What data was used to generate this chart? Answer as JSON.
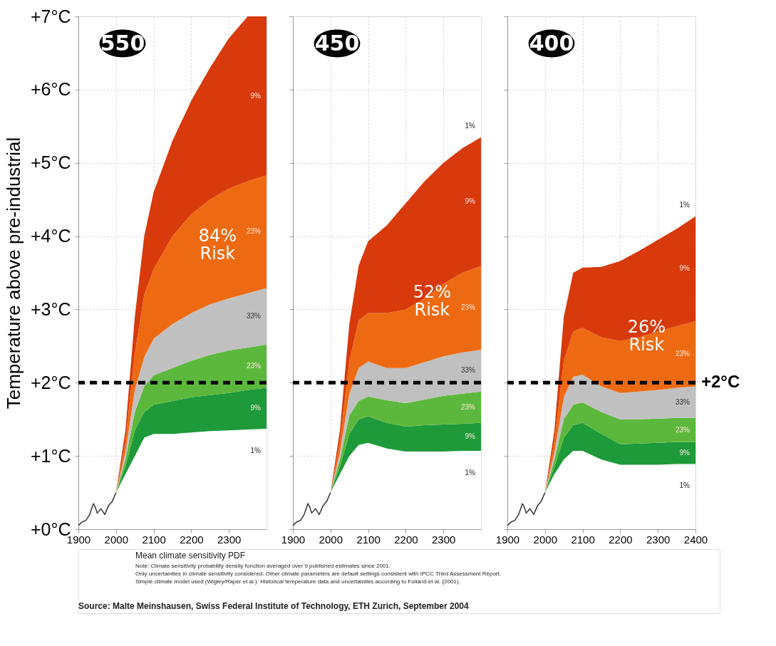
{
  "chart_data": [
    {
      "type": "area",
      "title": "550",
      "stacked": true,
      "ylabel": "Temperature above pre-industrial",
      "xlim": [
        1900,
        2400
      ],
      "xticks": [
        1900,
        2000,
        2100,
        2200,
        2300
      ],
      "ylim": [
        0,
        7
      ],
      "yticks": [
        {
          "value": 0,
          "label": "+0°C"
        },
        {
          "value": 1,
          "label": "+1°C"
        },
        {
          "value": 2,
          "label": "+2°C"
        },
        {
          "value": 3,
          "label": "+3°C"
        },
        {
          "value": 4,
          "label": "+4°C"
        },
        {
          "value": 5,
          "label": "+5°C"
        },
        {
          "value": 6,
          "label": "+6°C"
        },
        {
          "value": 7,
          "label": "+7°C"
        }
      ],
      "grid": true,
      "x": [
        2000,
        2025,
        2050,
        2075,
        2100,
        2150,
        2200,
        2250,
        2300,
        2350,
        2400
      ],
      "series": [
        {
          "name": "1%",
          "color": "#ffffff",
          "values": [
            0.5,
            0.75,
            1.0,
            1.25,
            1.3,
            1.3,
            1.32,
            1.34,
            1.35,
            1.36,
            1.37
          ]
        },
        {
          "name": "9%",
          "color": "#1e9a3a",
          "values": [
            0,
            0.1,
            0.35,
            0.35,
            0.4,
            0.45,
            0.48,
            0.49,
            0.51,
            0.54,
            0.56
          ]
        },
        {
          "name": "23%",
          "color": "#5cb83c",
          "values": [
            0,
            0.1,
            0.25,
            0.35,
            0.4,
            0.45,
            0.5,
            0.55,
            0.58,
            0.58,
            0.59
          ]
        },
        {
          "name": "33%",
          "color": "#c0c0c0",
          "values": [
            0,
            0.1,
            0.3,
            0.4,
            0.5,
            0.6,
            0.65,
            0.69,
            0.71,
            0.74,
            0.77
          ]
        },
        {
          "name": "23%",
          "color": "#ee6a12",
          "values": [
            0,
            0.15,
            0.5,
            0.85,
            0.95,
            1.2,
            1.35,
            1.43,
            1.5,
            1.53,
            1.54
          ]
        },
        {
          "name": "9%",
          "color": "#d83a0c",
          "values": [
            0,
            0.15,
            0.5,
            0.8,
            1.05,
            1.3,
            1.55,
            1.8,
            2.05,
            2.25,
            2.17
          ]
        },
        {
          "type": "line",
          "color": "#333333",
          "x": [
            1900,
            1910,
            1920,
            1930,
            1940,
            1945,
            1950,
            1960,
            1970,
            1980,
            1990,
            2000
          ],
          "values": [
            0.05,
            0.1,
            0.12,
            0.2,
            0.35,
            0.3,
            0.22,
            0.28,
            0.2,
            0.32,
            0.38,
            0.5
          ]
        }
      ],
      "ref_lines": [
        {
          "axis": "y",
          "value": 2,
          "color": "#000000",
          "line_style": "dashed"
        }
      ],
      "annotations": [
        "84%\nRisk"
      ]
    },
    {
      "type": "area",
      "title": "450",
      "stacked": true,
      "tick_labels": "x",
      "xlim": [
        1900,
        2400
      ],
      "xticks": [
        1900,
        2000,
        2100,
        2200,
        2300
      ],
      "ylim": [
        0,
        7
      ],
      "yticks": [
        0,
        1,
        2,
        3,
        4,
        5,
        6,
        7
      ],
      "grid": true,
      "x": [
        2000,
        2025,
        2050,
        2075,
        2100,
        2150,
        2200,
        2250,
        2300,
        2350,
        2400
      ],
      "series": [
        {
          "name": "1%",
          "color": "#ffffff",
          "values": [
            0.5,
            0.75,
            1.0,
            1.15,
            1.18,
            1.1,
            1.06,
            1.06,
            1.06,
            1.07,
            1.07
          ]
        },
        {
          "name": "9%",
          "color": "#1e9a3a",
          "values": [
            0,
            0.1,
            0.3,
            0.35,
            0.36,
            0.35,
            0.34,
            0.36,
            0.37,
            0.37,
            0.38
          ]
        },
        {
          "name": "23%",
          "color": "#5cb83c",
          "values": [
            0,
            0.1,
            0.25,
            0.25,
            0.27,
            0.31,
            0.32,
            0.35,
            0.39,
            0.41,
            0.43
          ]
        },
        {
          "name": "33%",
          "color": "#c0c0c0",
          "values": [
            0,
            0.1,
            0.3,
            0.45,
            0.48,
            0.44,
            0.48,
            0.51,
            0.54,
            0.56,
            0.57
          ]
        },
        {
          "name": "23%",
          "color": "#ee6a12",
          "values": [
            0,
            0.15,
            0.45,
            0.65,
            0.66,
            0.75,
            0.8,
            0.87,
            0.99,
            1.09,
            1.14
          ]
        },
        {
          "name": "9%",
          "color": "#d83a0c",
          "values": [
            0,
            0.15,
            0.5,
            0.75,
            0.98,
            1.2,
            1.45,
            1.6,
            1.65,
            1.7,
            1.76
          ]
        },
        {
          "type": "line",
          "color": "#333333",
          "x": [
            1900,
            1910,
            1920,
            1930,
            1940,
            1945,
            1950,
            1960,
            1970,
            1980,
            1990,
            2000
          ],
          "values": [
            0.05,
            0.1,
            0.12,
            0.2,
            0.35,
            0.3,
            0.22,
            0.28,
            0.2,
            0.32,
            0.38,
            0.5
          ]
        }
      ],
      "ref_lines": [
        {
          "axis": "y",
          "value": 2,
          "color": "#000000",
          "line_style": "dashed"
        }
      ],
      "annotations": [
        "52%\nRisk",
        "1%"
      ]
    },
    {
      "type": "area",
      "title": "400",
      "stacked": true,
      "tick_labels": "x",
      "xlim": [
        1900,
        2400
      ],
      "xticks": [
        1900,
        2000,
        2100,
        2200,
        2300,
        2400
      ],
      "ylim": [
        0,
        7
      ],
      "yticks": [
        0,
        1,
        2,
        3,
        4,
        5,
        6,
        7
      ],
      "grid": true,
      "x": [
        2000,
        2025,
        2050,
        2075,
        2100,
        2150,
        2200,
        2250,
        2300,
        2350,
        2400
      ],
      "series": [
        {
          "name": "1%",
          "color": "#ffffff",
          "values": [
            0.5,
            0.75,
            0.95,
            1.07,
            1.07,
            0.95,
            0.88,
            0.88,
            0.88,
            0.89,
            0.89
          ]
        },
        {
          "name": "9%",
          "color": "#1e9a3a",
          "values": [
            0,
            0.1,
            0.3,
            0.35,
            0.38,
            0.35,
            0.28,
            0.29,
            0.3,
            0.3,
            0.3
          ]
        },
        {
          "name": "23%",
          "color": "#5cb83c",
          "values": [
            0,
            0.1,
            0.25,
            0.28,
            0.28,
            0.3,
            0.34,
            0.33,
            0.33,
            0.33,
            0.33
          ]
        },
        {
          "name": "33%",
          "color": "#c0c0c0",
          "values": [
            0,
            0.1,
            0.3,
            0.38,
            0.38,
            0.35,
            0.36,
            0.38,
            0.39,
            0.41,
            0.43
          ]
        },
        {
          "name": "23%",
          "color": "#ee6a12",
          "values": [
            0,
            0.15,
            0.5,
            0.62,
            0.64,
            0.67,
            0.71,
            0.74,
            0.8,
            0.84,
            0.89
          ]
        },
        {
          "name": "9%",
          "color": "#d83a0c",
          "values": [
            0,
            0.15,
            0.6,
            0.8,
            0.82,
            0.96,
            1.09,
            1.18,
            1.25,
            1.33,
            1.43
          ]
        },
        {
          "type": "line",
          "color": "#333333",
          "x": [
            1900,
            1910,
            1920,
            1930,
            1940,
            1945,
            1950,
            1960,
            1970,
            1980,
            1990,
            2000
          ],
          "values": [
            0.05,
            0.1,
            0.12,
            0.2,
            0.35,
            0.3,
            0.22,
            0.28,
            0.2,
            0.32,
            0.38,
            0.5
          ]
        }
      ],
      "ref_lines": [
        {
          "axis": "y",
          "value": 2,
          "label": "+2°C",
          "color": "#000000",
          "line_style": "dashed"
        }
      ],
      "annotations": [
        "26%\nRisk",
        "1%"
      ]
    },
    {
      "type": "other",
      "annotations": [
        "Mean climate sensitivity PDF",
        "Note: Climate sensitivity probability density function averaged over 9 published estimates since 2001.",
        "Only uncertainties in climate sensitivity considered. Other climate parameters are default settings consistent with IPCC Third Assessment Report.",
        "Simple climate model used (Wigley/Raper et al.). Historical temperature data and uncertainties according to Folland et al. (2001).",
        "Source: Malte Meinshausen, Swiss Federal Institute of Technology, ETH Zurich, September 2004"
      ]
    }
  ]
}
